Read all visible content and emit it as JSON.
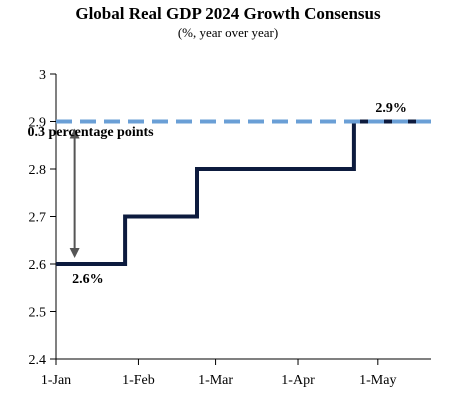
{
  "chart_data": {
    "type": "line",
    "title": "Global Real GDP 2024 Growth Consensus",
    "subtitle": "(%, year over year)",
    "xlabel": "",
    "ylabel": "",
    "ylim": [
      2.4,
      3.0
    ],
    "yticks": [
      "2.4",
      "2.5",
      "2.6",
      "2.7",
      "2.8",
      "2.9",
      "3"
    ],
    "xticks": [
      "1-Jan",
      "1-Feb",
      "1-Mar",
      "1-Apr",
      "1-May"
    ],
    "grid": false,
    "series": [
      {
        "style": "solid",
        "color": "#0d1b3e",
        "x": [
          "2024-01-01",
          "2024-01-27",
          "2024-01-27",
          "2024-02-23",
          "2024-02-23",
          "2024-04-22",
          "2024-04-22",
          "2024-05-21"
        ],
        "y": [
          2.6,
          2.6,
          2.7,
          2.7,
          2.8,
          2.8,
          2.9,
          2.9
        ]
      },
      {
        "style": "dashed",
        "color": "#6a9fd6",
        "x": [
          "2024-01-01",
          "2024-05-21"
        ],
        "y": [
          2.9,
          2.9
        ]
      }
    ],
    "annotations": [
      {
        "text": "2.9%",
        "x": "2024-05-06",
        "y": 2.92
      },
      {
        "text": "0.3 percentage points",
        "x": "2024-01-14",
        "y": 2.87
      },
      {
        "text": "2.6%",
        "x": "2024-01-13",
        "y": 2.56
      }
    ]
  }
}
